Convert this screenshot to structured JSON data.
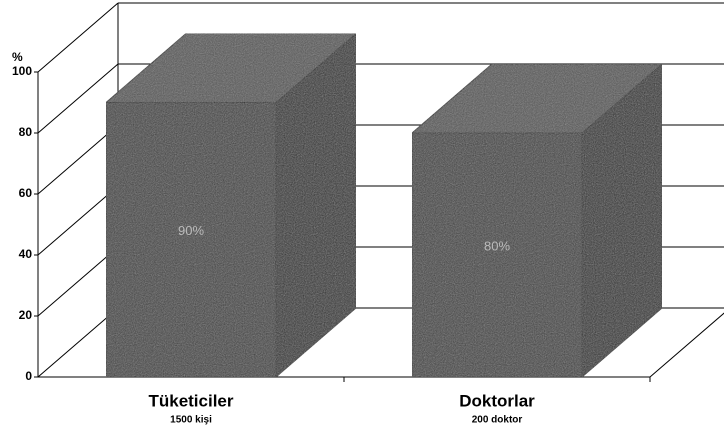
{
  "chart_data": {
    "type": "bar3d",
    "y_label": "%",
    "categories": [
      "Tüketiciler",
      "Doktorlar"
    ],
    "category_sublabels": [
      "1500 kişi",
      "200 doktor"
    ],
    "values": [
      90,
      80
    ],
    "value_labels": [
      "90%",
      "80%"
    ],
    "color": "#404040",
    "ylim": [
      0,
      100
    ],
    "yticks": [
      0,
      20,
      40,
      60,
      80,
      100
    ],
    "grid": true
  }
}
